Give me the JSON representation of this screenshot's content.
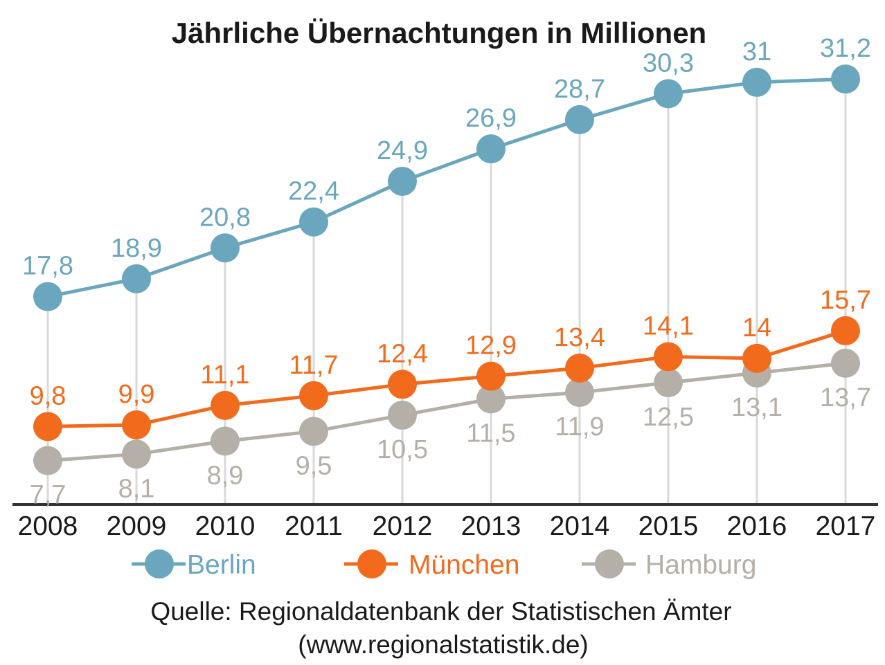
{
  "colors": {
    "background": "#ffffff",
    "title": "#1a1a1a",
    "axis": "#333333",
    "grid": "#d9d9d9"
  },
  "source": {
    "line1": "Quelle: Regionaldatenbank der Statistischen Ämter",
    "line2": "(www.regionalstatistik.de)"
  },
  "chart_data": {
    "type": "line",
    "title": "Jährliche Übernachtungen in Millionen",
    "xlabel": "",
    "ylabel": "",
    "x": [
      "2008",
      "2009",
      "2010",
      "2011",
      "2012",
      "2013",
      "2014",
      "2015",
      "2016",
      "2017"
    ],
    "ylim": [
      5,
      33
    ],
    "grid": "vertical",
    "legend_position": "bottom",
    "series": [
      {
        "name": "Berlin",
        "color": "#6aa6bd",
        "values": [
          17.8,
          18.9,
          20.8,
          22.4,
          24.9,
          26.9,
          28.7,
          30.3,
          31,
          31.2
        ],
        "labels": [
          "17,8",
          "18,9",
          "20,8",
          "22,4",
          "24,9",
          "26,9",
          "28,7",
          "30,3",
          "31",
          "31,2"
        ],
        "label_position": "above"
      },
      {
        "name": "München",
        "color": "#f26b1d",
        "values": [
          9.8,
          9.9,
          11.1,
          11.7,
          12.4,
          12.9,
          13.4,
          14.1,
          14,
          15.7
        ],
        "labels": [
          "9,8",
          "9,9",
          "11,1",
          "11,7",
          "12,4",
          "12,9",
          "13,4",
          "14,1",
          "14",
          "15,7"
        ],
        "label_position": "above"
      },
      {
        "name": "Hamburg",
        "color": "#b5b0a7",
        "values": [
          7.7,
          8.1,
          8.9,
          9.5,
          10.5,
          11.5,
          11.9,
          12.5,
          13.1,
          13.7
        ],
        "labels": [
          "7,7",
          "8,1",
          "8,9",
          "9,5",
          "10,5",
          "11,5",
          "11,9",
          "12,5",
          "13,1",
          "13,7"
        ],
        "label_position": "below"
      }
    ]
  }
}
